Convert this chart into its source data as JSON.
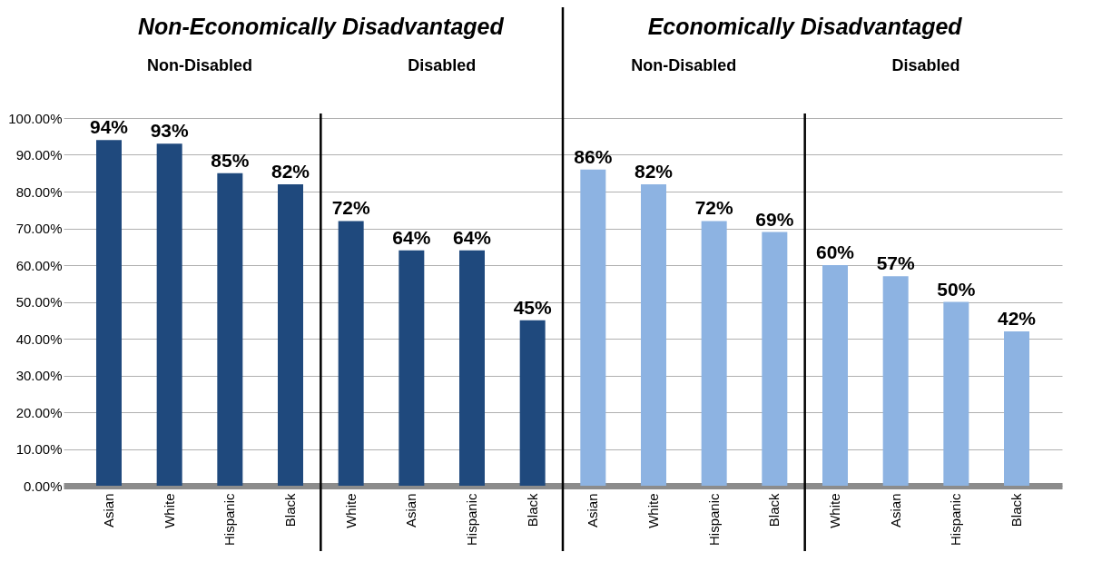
{
  "chart_data": {
    "type": "bar",
    "annotations": [
      "Non-Economically Disadvantaged",
      "Non-Disabled",
      "Disabled",
      "Economically Disadvantaged",
      "Non-Disabled",
      "Disabled"
    ],
    "categories": [
      "Asian",
      "White",
      "Hispanic",
      "Black",
      "White",
      "Asian",
      "Hispanic",
      "Black",
      "Asian",
      "White",
      "Hispanic",
      "Black",
      "White",
      "Asian",
      "Hispanic",
      "Black"
    ],
    "values": [
      94,
      93,
      85,
      82,
      72,
      64,
      64,
      45,
      86,
      82,
      72,
      69,
      60,
      57,
      50,
      42
    ],
    "value_labels": [
      "94%",
      "93%",
      "85%",
      "82%",
      "72%",
      "64%",
      "64%",
      "45%",
      "86%",
      "82%",
      "72%",
      "69%",
      "60%",
      "57%",
      "50%",
      "42%"
    ],
    "colors": [
      "#1f497d",
      "#1f497d",
      "#1f497d",
      "#1f497d",
      "#1f497d",
      "#1f497d",
      "#1f497d",
      "#1f497d",
      "#8db3e2",
      "#8db3e2",
      "#8db3e2",
      "#8db3e2",
      "#8db3e2",
      "#8db3e2",
      "#8db3e2",
      "#8db3e2"
    ],
    "ylim": [
      0,
      100
    ],
    "yticks": [
      {
        "value": 0,
        "label": "0.00%"
      },
      {
        "value": 10,
        "label": "10.00%"
      },
      {
        "value": 20,
        "label": "20.00%"
      },
      {
        "value": 30,
        "label": "30.00%"
      },
      {
        "value": 40,
        "label": "40.00%"
      },
      {
        "value": 50,
        "label": "50.00%"
      },
      {
        "value": 60,
        "label": "60.00%"
      },
      {
        "value": 70,
        "label": "70.00%"
      },
      {
        "value": 80,
        "label": "80.00%"
      },
      {
        "value": 90,
        "label": "90.00%"
      },
      {
        "value": 100,
        "label": "100.00%"
      }
    ],
    "grid": true
  }
}
